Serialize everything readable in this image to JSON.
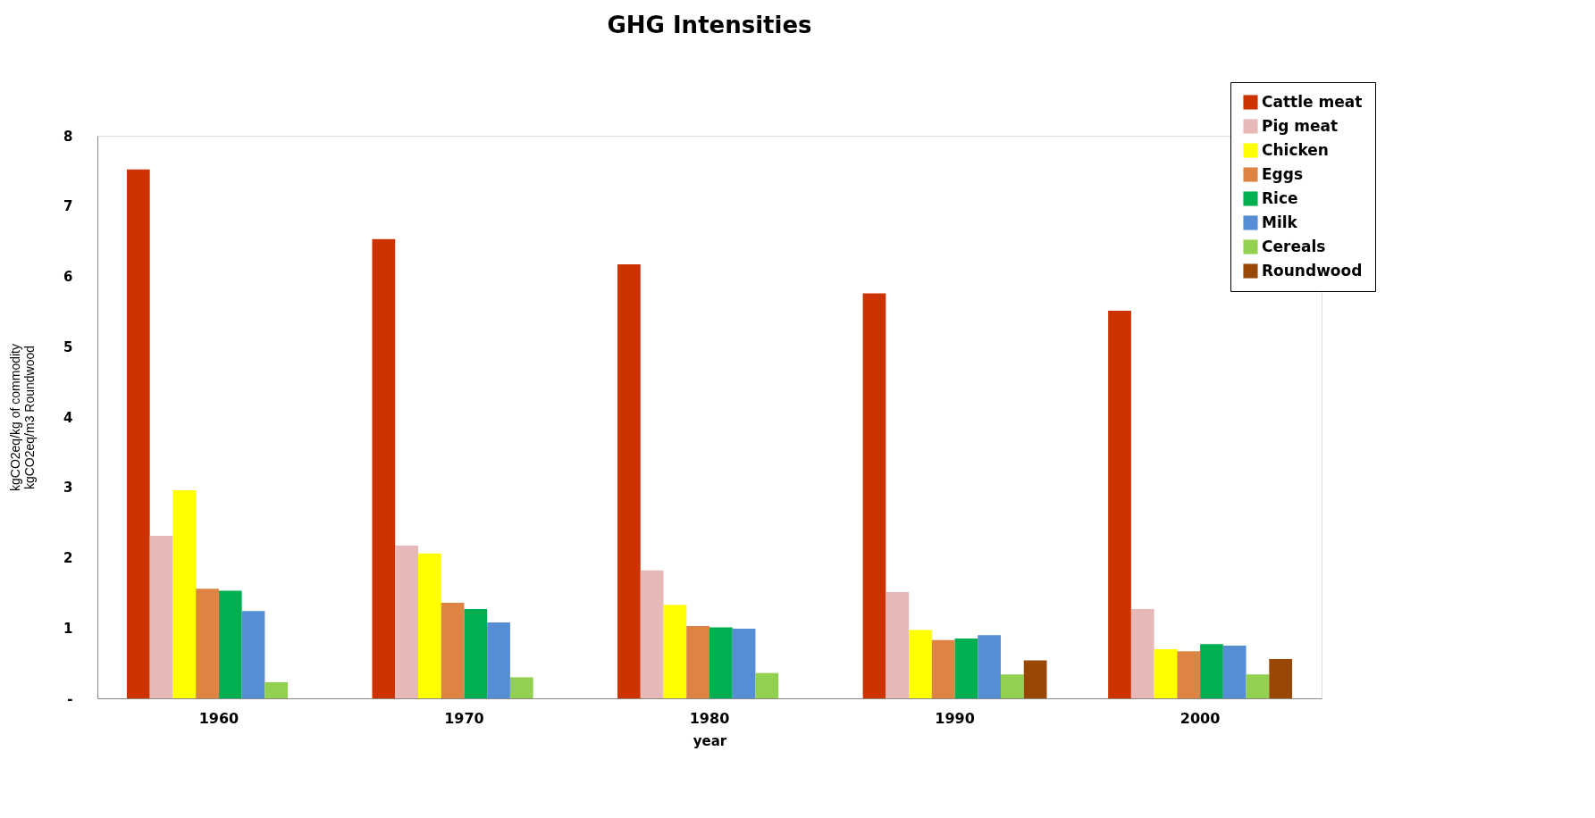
{
  "chart_data": {
    "type": "bar",
    "title": "GHG Intensities",
    "xlabel": "year",
    "ylabel": "kgCO2eq/kg of commodity\nkgCO2eq/m3 Roundwood",
    "categories": [
      "1960",
      "1970",
      "1980",
      "1990",
      "2000"
    ],
    "series": [
      {
        "name": "Cattle meat",
        "color": "#cc3300",
        "values": [
          7.52,
          6.53,
          6.17,
          5.76,
          5.51
        ]
      },
      {
        "name": "Pig meat",
        "color": "#e6b8b7",
        "values": [
          2.31,
          2.17,
          1.82,
          1.51,
          1.27
        ]
      },
      {
        "name": "Chicken",
        "color": "#ffff00",
        "values": [
          2.96,
          2.06,
          1.33,
          0.97,
          0.7
        ]
      },
      {
        "name": "Eggs",
        "color": "#dd8444",
        "values": [
          1.56,
          1.36,
          1.03,
          0.83,
          0.67
        ]
      },
      {
        "name": "Rice",
        "color": "#00b050",
        "values": [
          1.53,
          1.27,
          1.01,
          0.85,
          0.77
        ]
      },
      {
        "name": "Milk",
        "color": "#558ed5",
        "values": [
          1.24,
          1.08,
          0.99,
          0.9,
          0.75
        ]
      },
      {
        "name": "Cereals",
        "color": "#92d050",
        "values": [
          0.23,
          0.3,
          0.36,
          0.34,
          0.34
        ]
      },
      {
        "name": "Roundwood",
        "color": "#994707",
        "values": [
          null,
          null,
          null,
          0.54,
          0.56
        ]
      }
    ],
    "ylim": [
      0,
      8
    ],
    "yticks": [
      {
        "value": 0,
        "label": "-"
      },
      1,
      2,
      3,
      4,
      5,
      6,
      7,
      8
    ],
    "grid": false,
    "legend": "top right"
  }
}
